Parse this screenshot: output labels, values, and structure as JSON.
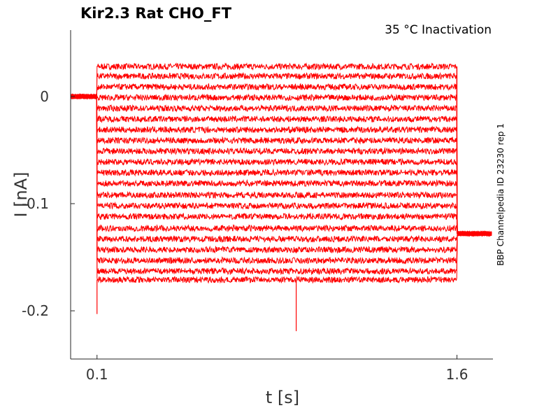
{
  "chart_data": {
    "type": "line",
    "title": "Kir2.3  Rat  CHO_FT",
    "subtitle": "35 °C  Inactivation",
    "side_note": "BBP Channelpedia ID 23230 rep 1",
    "xlabel": "t [s]",
    "ylabel": "I [nA]",
    "xlim": [
      -0.01,
      1.75
    ],
    "ylim": [
      -0.245,
      0.062
    ],
    "xticks": [
      0.1,
      1.6
    ],
    "xtick_labels": [
      "0.1",
      "1.6"
    ],
    "yticks": [
      0,
      -0.1,
      -0.2
    ],
    "ytick_labels": [
      "0",
      "-0.1",
      "-0.2"
    ],
    "color": "#ff0000",
    "grid": false,
    "pulse_start_s": 0.1,
    "pulse_end_s": 1.6,
    "baseline_current_nA": 0.0,
    "tail_current_nA": -0.128,
    "sweep_levels_nA": [
      0.028,
      0.019,
      0.009,
      -0.001,
      -0.011,
      -0.021,
      -0.031,
      -0.041,
      -0.051,
      -0.061,
      -0.071,
      -0.081,
      -0.092,
      -0.102,
      -0.112,
      -0.123,
      -0.133,
      -0.143,
      -0.153,
      -0.163,
      -0.171
    ],
    "noise_amplitude_nA": 0.004,
    "transient_peaks": [
      {
        "t": 0.1,
        "i": -0.203
      },
      {
        "t": 0.93,
        "i": -0.219
      },
      {
        "t": 1.6,
        "i": 0.028
      }
    ]
  }
}
